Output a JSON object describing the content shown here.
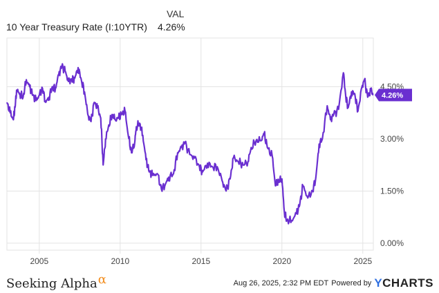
{
  "legend": {
    "header": "VAL",
    "series_name": "10 Year Treasury Rate (I:10YTR)",
    "series_value": "4.26%"
  },
  "footer": {
    "logo_text": "Seeking Alpha",
    "logo_symbol": "α",
    "timestamp": "Aug 26, 2025, 2:32 PM EDT",
    "powered_by": "Powered by",
    "brand": "YCHARTS"
  },
  "colors": {
    "line": "#6a2fd0",
    "grid": "#e3e3e3",
    "brand_y": "#2f6fe0",
    "alpha": "#f28c1c"
  },
  "chart_data": {
    "type": "line",
    "series": [
      {
        "name": "10 Year Treasury Rate (I:10YTR)",
        "x": [
          2003.0,
          2003.2,
          2003.4,
          2003.5,
          2003.6,
          2003.8,
          2004.0,
          2004.2,
          2004.4,
          2004.6,
          2004.8,
          2005.0,
          2005.2,
          2005.4,
          2005.6,
          2005.8,
          2006.0,
          2006.2,
          2006.4,
          2006.6,
          2006.8,
          2007.0,
          2007.2,
          2007.4,
          2007.6,
          2007.8,
          2008.0,
          2008.2,
          2008.4,
          2008.6,
          2008.8,
          2008.95,
          2009.1,
          2009.3,
          2009.5,
          2009.7,
          2009.9,
          2010.1,
          2010.3,
          2010.5,
          2010.7,
          2010.9,
          2011.0,
          2011.2,
          2011.4,
          2011.6,
          2011.8,
          2012.0,
          2012.3,
          2012.55,
          2012.8,
          2013.0,
          2013.3,
          2013.55,
          2013.8,
          2014.0,
          2014.3,
          2014.6,
          2014.9,
          2015.1,
          2015.4,
          2015.7,
          2016.0,
          2016.3,
          2016.55,
          2016.8,
          2017.0,
          2017.3,
          2017.6,
          2017.9,
          2018.1,
          2018.4,
          2018.7,
          2018.9,
          2019.1,
          2019.4,
          2019.6,
          2019.8,
          2020.0,
          2020.15,
          2020.3,
          2020.6,
          2020.9,
          2021.1,
          2021.3,
          2021.6,
          2021.9,
          2022.1,
          2022.3,
          2022.5,
          2022.8,
          2023.0,
          2023.2,
          2023.5,
          2023.8,
          2023.95,
          2024.1,
          2024.3,
          2024.5,
          2024.7,
          2024.95,
          2025.1,
          2025.3,
          2025.5,
          2025.65
        ],
        "values": [
          4.05,
          3.75,
          3.55,
          3.9,
          4.4,
          4.3,
          4.2,
          4.7,
          4.5,
          4.25,
          4.1,
          4.25,
          4.45,
          4.05,
          4.2,
          4.5,
          4.45,
          4.85,
          5.1,
          4.95,
          4.65,
          4.7,
          4.75,
          5.05,
          4.7,
          4.35,
          3.7,
          3.5,
          4.05,
          3.9,
          3.6,
          2.25,
          3.0,
          3.4,
          3.7,
          3.55,
          3.6,
          3.7,
          3.8,
          3.1,
          2.6,
          2.9,
          3.35,
          3.45,
          3.1,
          2.4,
          2.05,
          1.95,
          2.0,
          1.55,
          1.7,
          1.9,
          2.0,
          2.6,
          2.75,
          2.9,
          2.55,
          2.45,
          2.2,
          2.05,
          2.3,
          2.2,
          2.2,
          1.8,
          1.5,
          1.85,
          2.45,
          2.35,
          2.25,
          2.35,
          2.75,
          2.95,
          2.95,
          3.15,
          2.75,
          2.5,
          1.65,
          1.8,
          1.85,
          0.9,
          0.65,
          0.65,
          0.85,
          1.1,
          1.65,
          1.3,
          1.5,
          1.9,
          2.85,
          3.0,
          3.95,
          3.55,
          3.7,
          3.85,
          4.9,
          4.2,
          3.9,
          4.35,
          4.3,
          3.8,
          4.5,
          4.7,
          4.2,
          4.4,
          4.26
        ]
      }
    ],
    "x_ticks": [
      "2005",
      "2010",
      "2015",
      "2020",
      "2025"
    ],
    "y_ticks": [
      "0.00%",
      "1.50%",
      "3.00%",
      "4.50%"
    ],
    "xlim": [
      2003.0,
      2025.65
    ],
    "ylim": [
      -0.2,
      5.9
    ],
    "last_value_label": "4.26%",
    "grid": true
  }
}
